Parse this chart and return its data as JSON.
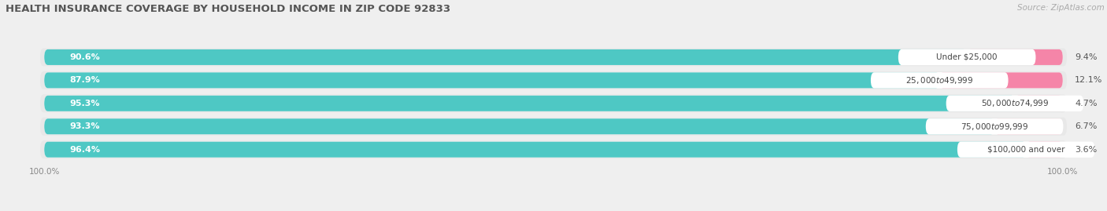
{
  "title": "HEALTH INSURANCE COVERAGE BY HOUSEHOLD INCOME IN ZIP CODE 92833",
  "source": "Source: ZipAtlas.com",
  "categories": [
    "Under $25,000",
    "$25,000 to $49,999",
    "$50,000 to $74,999",
    "$75,000 to $99,999",
    "$100,000 and over"
  ],
  "with_coverage": [
    90.6,
    87.9,
    95.3,
    93.3,
    96.4
  ],
  "without_coverage": [
    9.4,
    12.1,
    4.7,
    6.7,
    3.6
  ],
  "color_with": "#4ec8c4",
  "color_without": "#f585a8",
  "bg_color": "#efefef",
  "bar_bg_color": "#ffffff",
  "pill_bg_color": "#e8e8e8",
  "title_fontsize": 9.5,
  "label_fontsize": 8,
  "cat_fontsize": 7.5,
  "tick_fontsize": 7.5,
  "source_fontsize": 7.5,
  "legend_fontsize": 8,
  "bar_height": 0.68,
  "total": 100
}
